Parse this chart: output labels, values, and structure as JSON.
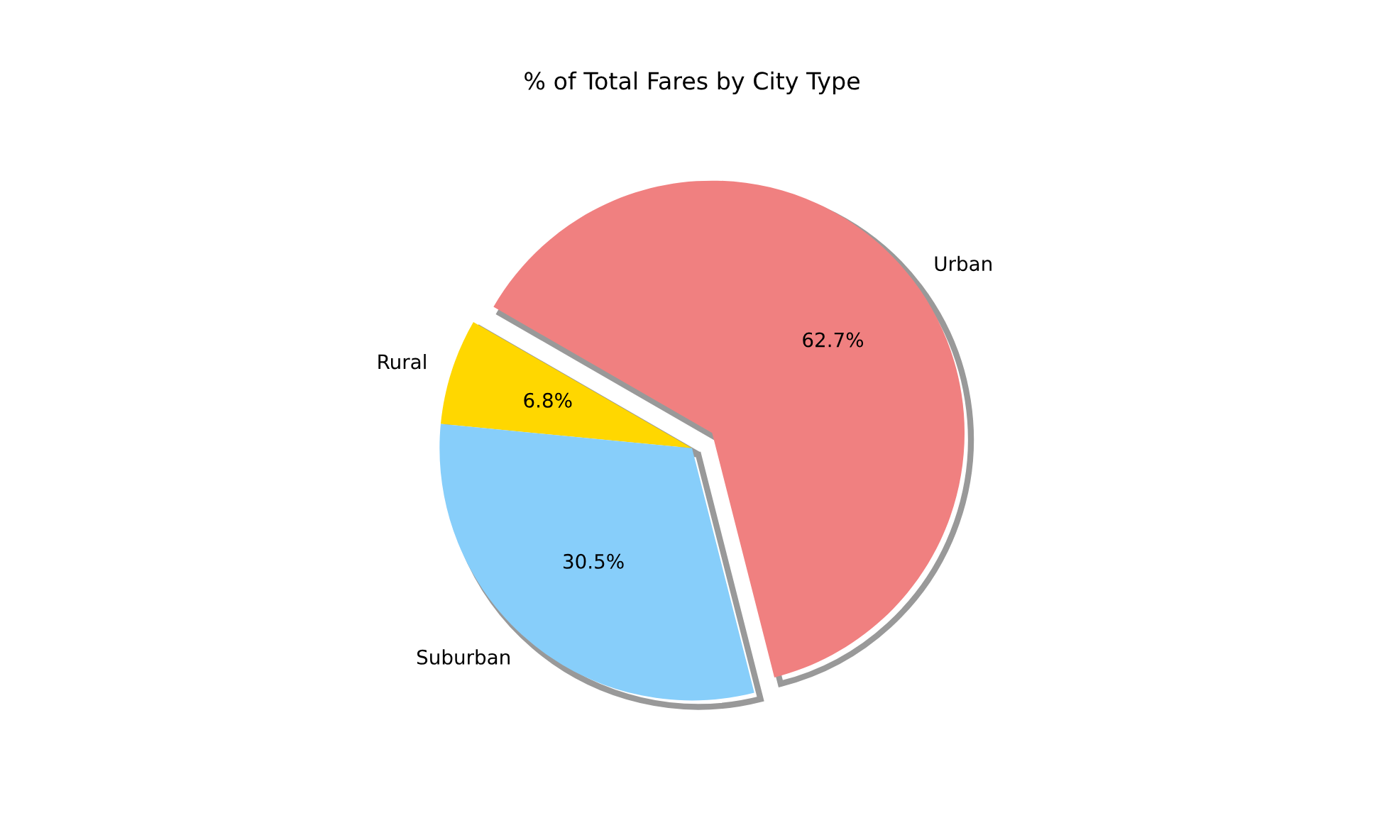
{
  "chart_data": {
    "type": "pie",
    "title": "% of Total Fares by City Type",
    "categories": [
      "Rural",
      "Suburban",
      "Urban"
    ],
    "values": [
      6.8,
      30.5,
      62.7
    ],
    "value_labels": [
      "6.8%",
      "30.5%",
      "62.7%"
    ],
    "colors": [
      "#ffd700",
      "#87cefa",
      "#f08080"
    ]
  }
}
